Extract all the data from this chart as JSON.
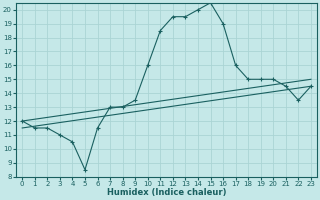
{
  "xlabel": "Humidex (Indice chaleur)",
  "bg_color": "#c5e8e8",
  "grid_color": "#aad4d4",
  "line_color": "#1a6060",
  "xlim": [
    -0.5,
    23.5
  ],
  "ylim": [
    8,
    20.5
  ],
  "xticks": [
    0,
    1,
    2,
    3,
    4,
    5,
    6,
    7,
    8,
    9,
    10,
    11,
    12,
    13,
    14,
    15,
    16,
    17,
    18,
    19,
    20,
    21,
    22,
    23
  ],
  "yticks": [
    8,
    9,
    10,
    11,
    12,
    13,
    14,
    15,
    16,
    17,
    18,
    19,
    20
  ],
  "main_x": [
    0,
    1,
    2,
    3,
    4,
    5,
    6,
    7,
    8,
    9,
    10,
    11,
    12,
    13,
    14,
    15,
    16,
    17,
    18,
    19,
    20,
    21,
    22,
    23
  ],
  "main_y": [
    12,
    11.5,
    11.5,
    11,
    10.5,
    8.5,
    11.5,
    13,
    13,
    13.5,
    16,
    18.5,
    19.5,
    19.5,
    20,
    20.5,
    19,
    16,
    15,
    15,
    15,
    14.5,
    13.5,
    14.5
  ],
  "trend1_x": [
    0,
    23
  ],
  "trend1_y": [
    12.0,
    15.0
  ],
  "trend2_x": [
    0,
    23
  ],
  "trend2_y": [
    11.5,
    14.5
  ],
  "markersize": 2.5,
  "linewidth": 0.8,
  "tick_fontsize": 5.0,
  "label_fontsize": 6.0
}
